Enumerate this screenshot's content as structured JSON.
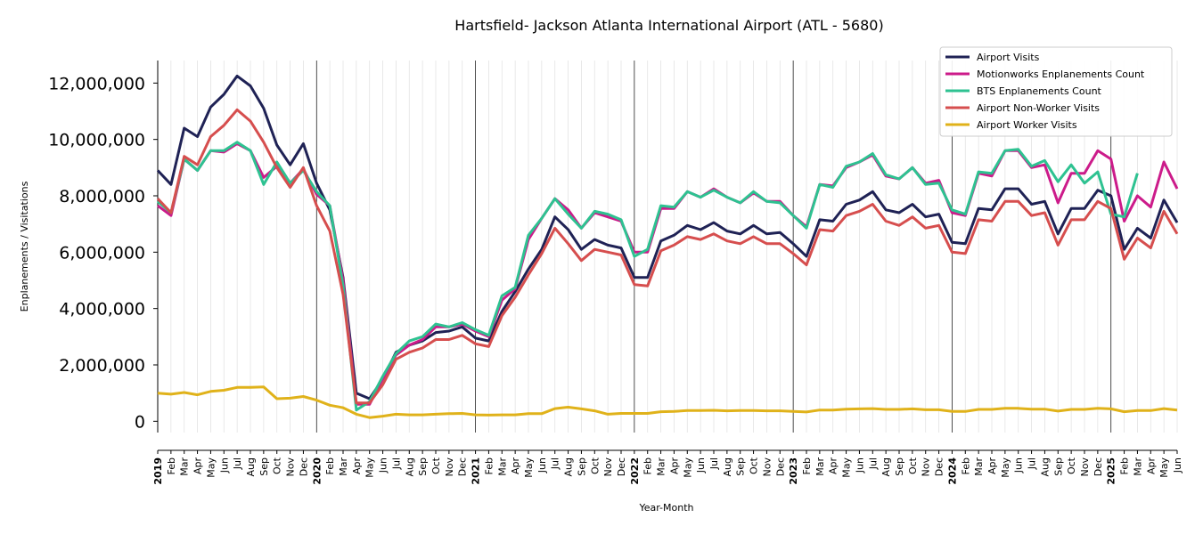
{
  "chart_data": {
    "type": "line",
    "title": "Hartsfield- Jackson Atlanta International Airport (ATL - 5680)",
    "xlabel": "Year-Month",
    "ylabel": "Enplanements / Visitations",
    "ylim": [
      -400000,
      12800000
    ],
    "yticks": [
      0,
      2000000,
      4000000,
      6000000,
      8000000,
      10000000,
      12000000
    ],
    "ytick_labels": [
      "0",
      "2,000,000",
      "4,000,000",
      "6,000,000",
      "8,000,000",
      "10,000,000",
      "12,000,000"
    ],
    "grid": "vertical monthly gridlines, darker line at each January",
    "legend_position": "top-right",
    "x": [
      "2019",
      "Feb",
      "Mar",
      "Apr",
      "May",
      "Jun",
      "Jul",
      "Aug",
      "Sep",
      "Oct",
      "Nov",
      "Dec",
      "2020",
      "Feb",
      "Mar",
      "Apr",
      "May",
      "Jun",
      "Jul",
      "Aug",
      "Sep",
      "Oct",
      "Nov",
      "Dec",
      "2021",
      "Feb",
      "Mar",
      "Apr",
      "May",
      "Jun",
      "Jul",
      "Aug",
      "Sep",
      "Oct",
      "Nov",
      "Dec",
      "2022",
      "Feb",
      "Mar",
      "Apr",
      "May",
      "Jun",
      "Jul",
      "Aug",
      "Sep",
      "Oct",
      "Nov",
      "Dec",
      "2023",
      "Feb",
      "Mar",
      "Apr",
      "May",
      "Jun",
      "Jul",
      "Aug",
      "Sep",
      "Oct",
      "Nov",
      "Dec",
      "2024",
      "Feb",
      "Mar",
      "Apr",
      "May",
      "Jun",
      "Jul",
      "Aug",
      "Sep",
      "Oct",
      "Nov",
      "Dec",
      "2025",
      "Feb",
      "Mar",
      "Apr",
      "May",
      "Jun"
    ],
    "series": [
      {
        "name": "Airport Visits",
        "color": "#1f2255",
        "values": [
          8900000,
          8400000,
          10400000,
          10100000,
          11150000,
          11600000,
          12250000,
          11900000,
          11100000,
          9800000,
          9100000,
          9850000,
          8450000,
          7500000,
          5100000,
          1000000,
          800000,
          1500000,
          2450000,
          2700000,
          2850000,
          3150000,
          3200000,
          3350000,
          2950000,
          2850000,
          3900000,
          4600000,
          5400000,
          6100000,
          7250000,
          6800000,
          6100000,
          6450000,
          6250000,
          6150000,
          5100000,
          5100000,
          6400000,
          6600000,
          6950000,
          6800000,
          7050000,
          6750000,
          6650000,
          6950000,
          6650000,
          6700000,
          6300000,
          5850000,
          7150000,
          7100000,
          7700000,
          7850000,
          8150000,
          7500000,
          7400000,
          7700000,
          7250000,
          7350000,
          6350000,
          6300000,
          7550000,
          7500000,
          8250000,
          8250000,
          7700000,
          7800000,
          6650000,
          7550000,
          7550000,
          8200000,
          8000000,
          6100000,
          6850000,
          6500000,
          7850000,
          7050000
        ]
      },
      {
        "name": "Motionworks Enplanements Count",
        "color": "#cc1b8a",
        "values": [
          7650000,
          7300000,
          9300000,
          8900000,
          9600000,
          9550000,
          9850000,
          9600000,
          8650000,
          9050000,
          8450000,
          8950000,
          8050000,
          7650000,
          5000000,
          600000,
          600000,
          1500000,
          2350000,
          2700000,
          2900000,
          3350000,
          3350000,
          3450000,
          3200000,
          3000000,
          4300000,
          4700000,
          6450000,
          7200000,
          7900000,
          7500000,
          6850000,
          7400000,
          7250000,
          7100000,
          6000000,
          6000000,
          7550000,
          7550000,
          8150000,
          7950000,
          8250000,
          7950000,
          7750000,
          8100000,
          7800000,
          7800000,
          7300000,
          6900000,
          8400000,
          8350000,
          9000000,
          9200000,
          9450000,
          8700000,
          8600000,
          9000000,
          8450000,
          8550000,
          7400000,
          7300000,
          8800000,
          8700000,
          9600000,
          9600000,
          9000000,
          9100000,
          7750000,
          8800000,
          8800000,
          9600000,
          9300000,
          7100000,
          8000000,
          7600000,
          9200000,
          8250000
        ]
      },
      {
        "name": "BTS Enplanements Count",
        "color": "#2ec291",
        "values": [
          7800000,
          7400000,
          9300000,
          8900000,
          9600000,
          9600000,
          9900000,
          9600000,
          8400000,
          9200000,
          8450000,
          8900000,
          8150000,
          7650000,
          4800000,
          400000,
          700000,
          1600000,
          2400000,
          2850000,
          3000000,
          3450000,
          3350000,
          3500000,
          3250000,
          3050000,
          4450000,
          4750000,
          6600000,
          7200000,
          7900000,
          7350000,
          6850000,
          7450000,
          7350000,
          7150000,
          5850000,
          6100000,
          7650000,
          7600000,
          8150000,
          7950000,
          8200000,
          7950000,
          7750000,
          8150000,
          7800000,
          7750000,
          7300000,
          6850000,
          8400000,
          8300000,
          9050000,
          9200000,
          9500000,
          8750000,
          8600000,
          9000000,
          8400000,
          8450000,
          7500000,
          7350000,
          8850000,
          8800000,
          9600000,
          9650000,
          9050000,
          9250000,
          8500000,
          9100000,
          8450000,
          8850000,
          7350000,
          7250000,
          8800000,
          null,
          null,
          null
        ]
      },
      {
        "name": "Airport Non-Worker Visits",
        "color": "#d64e4e",
        "values": [
          7900000,
          7400000,
          9400000,
          9100000,
          10100000,
          10500000,
          11050000,
          10650000,
          9900000,
          9000000,
          8300000,
          9000000,
          7650000,
          6750000,
          4500000,
          650000,
          650000,
          1300000,
          2200000,
          2450000,
          2600000,
          2900000,
          2900000,
          3050000,
          2750000,
          2650000,
          3750000,
          4400000,
          5200000,
          5950000,
          6850000,
          6300000,
          5700000,
          6100000,
          6000000,
          5900000,
          4850000,
          4800000,
          6050000,
          6250000,
          6550000,
          6450000,
          6650000,
          6400000,
          6300000,
          6550000,
          6300000,
          6300000,
          5950000,
          5550000,
          6800000,
          6750000,
          7300000,
          7450000,
          7700000,
          7100000,
          6950000,
          7250000,
          6850000,
          6950000,
          6000000,
          5950000,
          7150000,
          7100000,
          7800000,
          7800000,
          7300000,
          7400000,
          6250000,
          7150000,
          7150000,
          7800000,
          7550000,
          5750000,
          6500000,
          6150000,
          7450000,
          6650000
        ]
      },
      {
        "name": "Airport Worker Visits",
        "color": "#e0b21a",
        "values": [
          1000000,
          960000,
          1020000,
          940000,
          1060000,
          1100000,
          1200000,
          1200000,
          1220000,
          800000,
          820000,
          880000,
          750000,
          570000,
          480000,
          250000,
          130000,
          180000,
          250000,
          230000,
          230000,
          250000,
          270000,
          280000,
          230000,
          220000,
          230000,
          230000,
          270000,
          270000,
          450000,
          500000,
          440000,
          370000,
          250000,
          280000,
          280000,
          280000,
          340000,
          350000,
          380000,
          380000,
          390000,
          370000,
          380000,
          380000,
          370000,
          370000,
          350000,
          330000,
          400000,
          400000,
          430000,
          440000,
          450000,
          420000,
          420000,
          440000,
          410000,
          410000,
          350000,
          350000,
          420000,
          420000,
          460000,
          460000,
          430000,
          430000,
          360000,
          420000,
          420000,
          460000,
          440000,
          340000,
          380000,
          380000,
          450000,
          400000
        ]
      }
    ]
  }
}
